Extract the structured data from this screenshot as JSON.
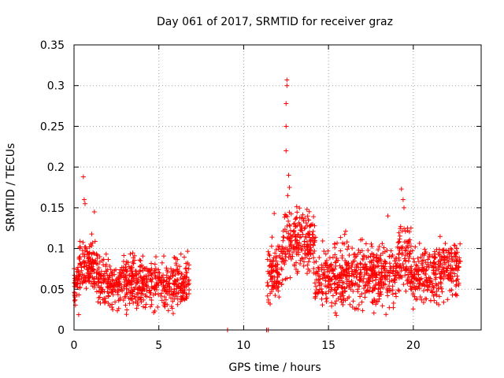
{
  "chart_data": {
    "type": "scatter",
    "title": "Day 061 of 2017, SRMTID for receiver graz",
    "xlabel": "GPS time / hours",
    "ylabel": "SRMTID / TECUs",
    "xlim": [
      0,
      24
    ],
    "ylim": [
      0,
      0.35
    ],
    "xticks": [
      0,
      5,
      10,
      15,
      20
    ],
    "xtick_labels": [
      "0",
      "5",
      "10",
      "15",
      "20"
    ],
    "yticks": [
      0,
      0.05,
      0.1,
      0.15,
      0.2,
      0.25,
      0.3,
      0.35
    ],
    "ytick_labels": [
      "0",
      "0.05",
      "0.1",
      "0.15",
      "0.2",
      "0.25",
      "0.3",
      "0.35"
    ],
    "grid": true,
    "marker": "+",
    "color": "#ff0000",
    "series": [
      {
        "name": "SRMTID",
        "description": "dense scatter in two active periods",
        "segments": [
          {
            "x_start": 0.0,
            "x_end": 6.8,
            "y_center": 0.057,
            "y_spread": 0.02
          },
          {
            "x_start": 11.4,
            "x_end": 22.8,
            "y_center": 0.068,
            "y_spread": 0.025
          }
        ],
        "notable_points": [
          {
            "x": 0.55,
            "y": 0.188
          },
          {
            "x": 0.6,
            "y": 0.16
          },
          {
            "x": 0.65,
            "y": 0.155
          },
          {
            "x": 1.2,
            "y": 0.145
          },
          {
            "x": 12.55,
            "y": 0.307
          },
          {
            "x": 12.55,
            "y": 0.3
          },
          {
            "x": 12.5,
            "y": 0.278
          },
          {
            "x": 12.5,
            "y": 0.25
          },
          {
            "x": 12.5,
            "y": 0.22
          },
          {
            "x": 12.65,
            "y": 0.19
          },
          {
            "x": 12.7,
            "y": 0.175
          },
          {
            "x": 12.6,
            "y": 0.165
          },
          {
            "x": 11.8,
            "y": 0.143
          },
          {
            "x": 19.3,
            "y": 0.173
          },
          {
            "x": 19.4,
            "y": 0.16
          },
          {
            "x": 19.45,
            "y": 0.15
          },
          {
            "x": 18.5,
            "y": 0.14
          },
          {
            "x": 9.05,
            "y": 0.0
          },
          {
            "x": 11.35,
            "y": 0.0
          },
          {
            "x": 11.45,
            "y": 0.0
          }
        ]
      }
    ]
  }
}
